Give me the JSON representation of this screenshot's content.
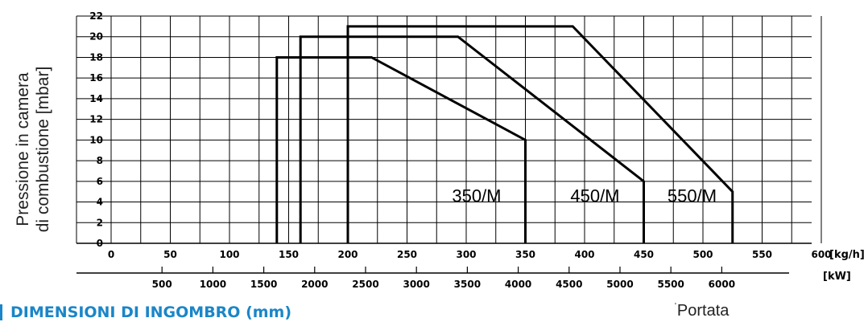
{
  "chart_data": {
    "type": "line",
    "ylabel_lines": [
      "Pressione in camera",
      "di combustione [mbar]"
    ],
    "xlabel": "Portata",
    "x_unit": "[kg/h]",
    "x2_unit": "[kW]",
    "xlim": [
      0,
      600
    ],
    "ylim": [
      0,
      22
    ],
    "y_ticks": [
      0,
      2,
      4,
      6,
      8,
      10,
      12,
      14,
      16,
      18,
      20,
      22
    ],
    "x_ticks": [
      0,
      50,
      100,
      150,
      200,
      250,
      300,
      350,
      400,
      450,
      500,
      550,
      600
    ],
    "x2_ticks": [
      500,
      1000,
      1500,
      2000,
      2500,
      3000,
      3500,
      4000,
      4500,
      5000,
      5500,
      6000
    ],
    "x2_per_x": 11.63,
    "grid": true,
    "series": [
      {
        "name": "350/M",
        "x": [
          140,
          140,
          220,
          350,
          350
        ],
        "y": [
          0,
          18,
          18,
          10,
          0
        ],
        "dashed_x": null
      },
      {
        "name": "450/M",
        "x": [
          160,
          160,
          293,
          450,
          450
        ],
        "y": [
          0,
          20,
          20,
          6,
          0
        ],
        "dashed_x": 160
      },
      {
        "name": "550/M",
        "x": [
          200,
          200,
          390,
          525,
          525
        ],
        "y": [
          0,
          21,
          21,
          5,
          0
        ],
        "dashed_x": 200
      }
    ]
  },
  "section": {
    "title": "DIMENSIONI DI INGOMBRO (mm)"
  },
  "footer": {
    "tick": "'",
    "label": "Portata"
  }
}
